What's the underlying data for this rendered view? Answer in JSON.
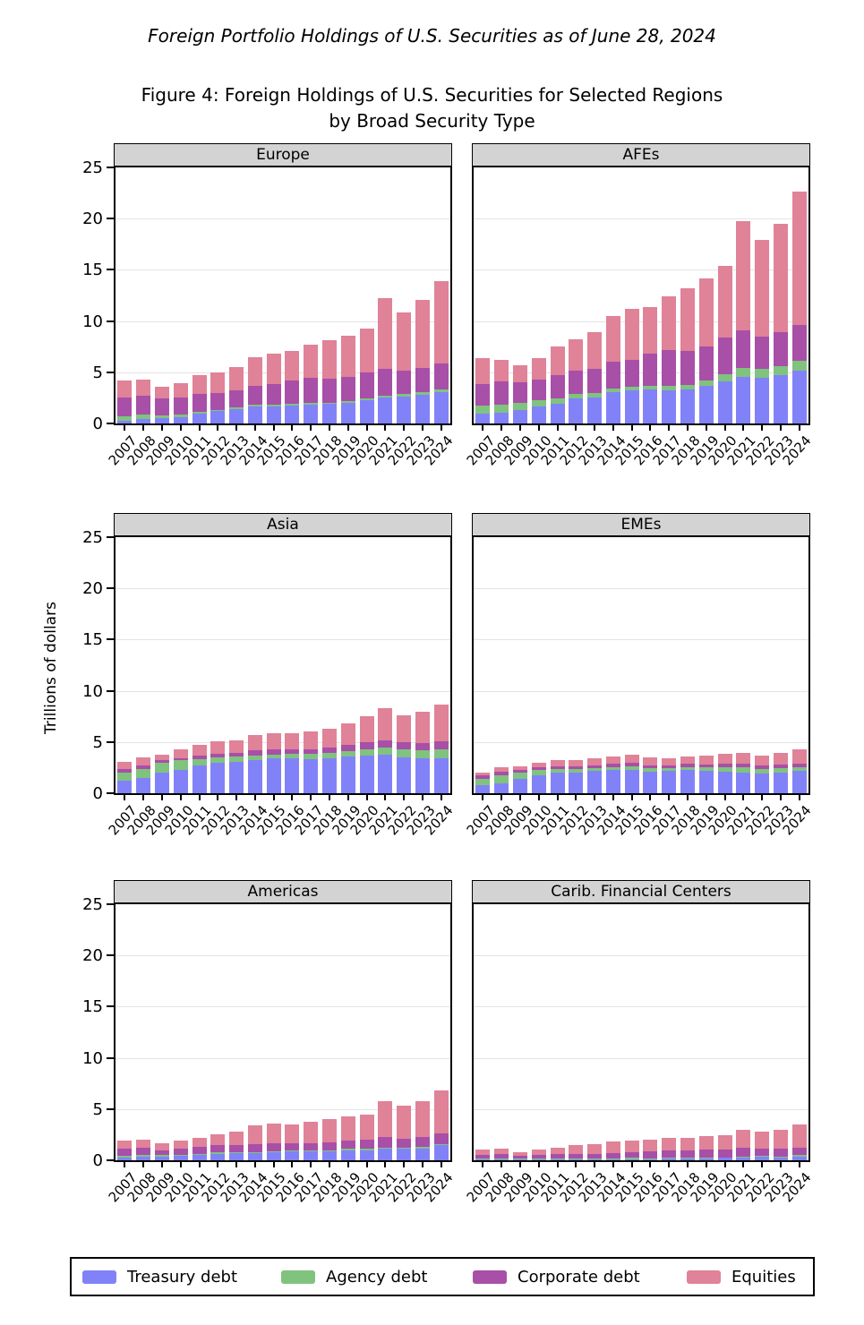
{
  "page": {
    "title": "Foreign Portfolio Holdings of U.S. Securities as of June 28, 2024",
    "figure_title_line1": "Figure 4: Foreign Holdings of U.S. Securities for Selected Regions",
    "figure_title_line2": "by Broad Security Type"
  },
  "chart_data": {
    "type": "bar",
    "stacked": true,
    "title": "Figure 4: Foreign Holdings of U.S. Securities for Selected Regions by Broad Security Type",
    "ylabel": "Trillions of dollars",
    "ylim": [
      0,
      25
    ],
    "yticks": [
      0,
      5,
      10,
      15,
      20,
      25
    ],
    "grid": true,
    "legend_position": "bottom",
    "categories": [
      "2007",
      "2008",
      "2009",
      "2010",
      "2011",
      "2012",
      "2013",
      "2014",
      "2015",
      "2016",
      "2017",
      "2018",
      "2019",
      "2020",
      "2021",
      "2022",
      "2023",
      "2024"
    ],
    "series_names": [
      "Treasury debt",
      "Agency debt",
      "Corporate debt",
      "Equities"
    ],
    "colors": {
      "series": [
        "#8282f8",
        "#7fc37f",
        "#a84fa8",
        "#e08298"
      ],
      "panel_header": "#d3d3d3",
      "gridline": "#e4e4e4",
      "border": "#000000"
    },
    "panels": [
      {
        "title": "Europe",
        "values": [
          [
            0.3,
            0.4,
            1.8,
            1.7
          ],
          [
            0.4,
            0.45,
            1.85,
            1.55
          ],
          [
            0.55,
            0.25,
            1.65,
            1.15
          ],
          [
            0.6,
            0.25,
            1.65,
            1.45
          ],
          [
            1.0,
            0.15,
            1.7,
            1.9
          ],
          [
            1.2,
            0.1,
            1.7,
            2.0
          ],
          [
            1.4,
            0.15,
            1.7,
            2.3
          ],
          [
            1.65,
            0.15,
            1.85,
            2.85
          ],
          [
            1.7,
            0.15,
            2.0,
            3.0
          ],
          [
            1.75,
            0.15,
            2.3,
            2.9
          ],
          [
            1.85,
            0.15,
            2.5,
            3.2
          ],
          [
            1.9,
            0.15,
            2.35,
            3.75
          ],
          [
            2.05,
            0.15,
            2.35,
            4.0
          ],
          [
            2.3,
            0.15,
            2.55,
            4.25
          ],
          [
            2.55,
            0.2,
            2.6,
            6.85
          ],
          [
            2.6,
            0.25,
            2.3,
            5.7
          ],
          [
            2.8,
            0.25,
            2.4,
            6.65
          ],
          [
            3.05,
            0.25,
            2.6,
            8.0
          ]
        ]
      },
      {
        "title": "AFEs",
        "values": [
          [
            0.95,
            0.8,
            2.1,
            2.5
          ],
          [
            1.05,
            0.8,
            2.25,
            2.1
          ],
          [
            1.3,
            0.7,
            2.0,
            1.7
          ],
          [
            1.7,
            0.55,
            2.0,
            2.1
          ],
          [
            1.9,
            0.55,
            2.25,
            2.8
          ],
          [
            2.45,
            0.45,
            2.25,
            3.05
          ],
          [
            2.55,
            0.4,
            2.35,
            3.65
          ],
          [
            3.05,
            0.4,
            2.6,
            4.45
          ],
          [
            3.2,
            0.35,
            2.65,
            4.95
          ],
          [
            3.3,
            0.4,
            3.1,
            4.55
          ],
          [
            3.2,
            0.45,
            3.55,
            5.2
          ],
          [
            3.3,
            0.5,
            3.3,
            6.1
          ],
          [
            3.65,
            0.55,
            3.35,
            6.6
          ],
          [
            4.1,
            0.75,
            3.55,
            6.95
          ],
          [
            4.55,
            0.85,
            3.7,
            10.65
          ],
          [
            4.5,
            0.8,
            3.2,
            9.45
          ],
          [
            4.7,
            0.9,
            3.3,
            10.6
          ],
          [
            5.15,
            1.0,
            3.45,
            13.05
          ]
        ]
      },
      {
        "title": "Asia",
        "values": [
          [
            1.25,
            0.8,
            0.3,
            0.7
          ],
          [
            1.45,
            0.95,
            0.3,
            0.8
          ],
          [
            2.0,
            0.95,
            0.25,
            0.6
          ],
          [
            2.3,
            0.9,
            0.25,
            0.85
          ],
          [
            2.75,
            0.6,
            0.3,
            1.1
          ],
          [
            2.95,
            0.55,
            0.35,
            1.2
          ],
          [
            3.05,
            0.5,
            0.35,
            1.3
          ],
          [
            3.25,
            0.45,
            0.5,
            1.5
          ],
          [
            3.4,
            0.35,
            0.5,
            1.65
          ],
          [
            3.4,
            0.45,
            0.45,
            1.55
          ],
          [
            3.3,
            0.55,
            0.45,
            1.75
          ],
          [
            3.4,
            0.55,
            0.5,
            1.85
          ],
          [
            3.6,
            0.5,
            0.6,
            2.15
          ],
          [
            3.65,
            0.65,
            0.65,
            2.55
          ],
          [
            3.75,
            0.7,
            0.75,
            3.15
          ],
          [
            3.5,
            0.8,
            0.65,
            2.65
          ],
          [
            3.4,
            0.8,
            0.7,
            3.05
          ],
          [
            3.45,
            0.8,
            0.85,
            3.6
          ]
        ]
      },
      {
        "title": "EMEs",
        "values": [
          [
            0.75,
            0.65,
            0.35,
            0.3
          ],
          [
            1.0,
            0.75,
            0.35,
            0.4
          ],
          [
            1.4,
            0.65,
            0.25,
            0.35
          ],
          [
            1.75,
            0.5,
            0.25,
            0.45
          ],
          [
            2.05,
            0.3,
            0.25,
            0.6
          ],
          [
            2.05,
            0.35,
            0.25,
            0.55
          ],
          [
            2.2,
            0.25,
            0.3,
            0.7
          ],
          [
            2.25,
            0.3,
            0.35,
            0.7
          ],
          [
            2.3,
            0.3,
            0.35,
            0.8
          ],
          [
            2.1,
            0.35,
            0.3,
            0.75
          ],
          [
            2.15,
            0.3,
            0.3,
            0.7
          ],
          [
            2.25,
            0.3,
            0.3,
            0.7
          ],
          [
            2.2,
            0.3,
            0.3,
            0.85
          ],
          [
            2.1,
            0.4,
            0.35,
            1.0
          ],
          [
            2.05,
            0.45,
            0.35,
            1.1
          ],
          [
            1.95,
            0.45,
            0.3,
            0.95
          ],
          [
            2.05,
            0.4,
            0.35,
            1.1
          ],
          [
            2.15,
            0.35,
            0.4,
            1.35
          ]
        ]
      },
      {
        "title": "Americas",
        "values": [
          [
            0.3,
            0.15,
            0.65,
            0.8
          ],
          [
            0.35,
            0.15,
            0.7,
            0.85
          ],
          [
            0.35,
            0.15,
            0.5,
            0.65
          ],
          [
            0.45,
            0.1,
            0.6,
            0.75
          ],
          [
            0.55,
            0.1,
            0.65,
            0.9
          ],
          [
            0.65,
            0.1,
            0.7,
            1.05
          ],
          [
            0.7,
            0.1,
            0.7,
            1.3
          ],
          [
            0.7,
            0.1,
            0.75,
            1.85
          ],
          [
            0.8,
            0.1,
            0.75,
            1.95
          ],
          [
            0.9,
            0.1,
            0.7,
            1.8
          ],
          [
            0.9,
            0.1,
            0.65,
            2.15
          ],
          [
            0.9,
            0.1,
            0.75,
            2.3
          ],
          [
            1.0,
            0.1,
            0.85,
            2.35
          ],
          [
            1.0,
            0.1,
            0.95,
            2.4
          ],
          [
            1.15,
            0.1,
            1.0,
            3.5
          ],
          [
            1.15,
            0.1,
            0.85,
            3.2
          ],
          [
            1.15,
            0.15,
            1.0,
            3.45
          ],
          [
            1.45,
            0.15,
            1.0,
            4.2
          ]
        ]
      },
      {
        "title": "Carib. Financial Centers",
        "values": [
          [
            0.05,
            0.1,
            0.35,
            0.55
          ],
          [
            0.05,
            0.1,
            0.45,
            0.55
          ],
          [
            0.05,
            0.1,
            0.3,
            0.35
          ],
          [
            0.05,
            0.1,
            0.4,
            0.5
          ],
          [
            0.05,
            0.1,
            0.45,
            0.65
          ],
          [
            0.1,
            0.1,
            0.4,
            0.85
          ],
          [
            0.1,
            0.1,
            0.45,
            0.9
          ],
          [
            0.1,
            0.1,
            0.5,
            1.15
          ],
          [
            0.1,
            0.15,
            0.55,
            1.1
          ],
          [
            0.1,
            0.1,
            0.65,
            1.15
          ],
          [
            0.2,
            0.05,
            0.7,
            1.2
          ],
          [
            0.2,
            0.05,
            0.7,
            1.25
          ],
          [
            0.2,
            0.05,
            0.8,
            1.3
          ],
          [
            0.25,
            0.05,
            0.75,
            1.4
          ],
          [
            0.3,
            0.05,
            0.85,
            1.8
          ],
          [
            0.35,
            0.05,
            0.7,
            1.7
          ],
          [
            0.3,
            0.05,
            0.75,
            1.85
          ],
          [
            0.35,
            0.15,
            0.7,
            2.3
          ]
        ]
      }
    ]
  }
}
